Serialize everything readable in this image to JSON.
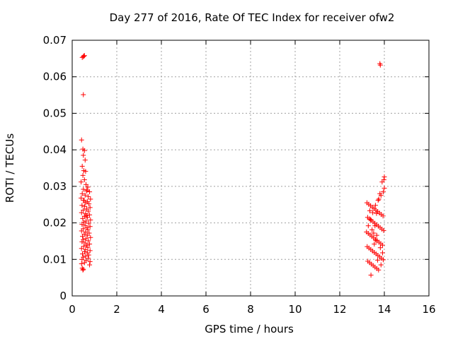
{
  "chart_data": {
    "type": "scatter",
    "title": "Day 277 of 2016, Rate Of TEC Index for receiver ofw2",
    "xlabel": "GPS time / hours",
    "ylabel": "ROTI / TECUs",
    "xlim": [
      0,
      16
    ],
    "ylim": [
      0,
      0.07
    ],
    "xticks": [
      "0",
      "2",
      "4",
      "6",
      "8",
      "10",
      "12",
      "14",
      "16"
    ],
    "yticks": [
      "0",
      "0.01",
      "0.02",
      "0.03",
      "0.04",
      "0.05",
      "0.06",
      "0.07"
    ],
    "grid": true,
    "marker": "+",
    "series_color": "#ff0000",
    "series": [
      {
        "name": "ROTI",
        "points": [
          [
            0.45,
            0.0653
          ],
          [
            0.5,
            0.0655
          ],
          [
            0.52,
            0.0657
          ],
          [
            0.55,
            0.0658
          ],
          [
            0.5,
            0.0551
          ],
          [
            0.42,
            0.0427
          ],
          [
            0.48,
            0.0402
          ],
          [
            0.55,
            0.0398
          ],
          [
            0.5,
            0.0385
          ],
          [
            0.58,
            0.0372
          ],
          [
            0.45,
            0.0355
          ],
          [
            0.52,
            0.0343
          ],
          [
            0.6,
            0.0341
          ],
          [
            0.48,
            0.033
          ],
          [
            0.55,
            0.0318
          ],
          [
            0.4,
            0.0312
          ],
          [
            0.62,
            0.0305
          ],
          [
            0.7,
            0.0298
          ],
          [
            0.5,
            0.0292
          ],
          [
            0.65,
            0.0287
          ],
          [
            0.78,
            0.0285
          ],
          [
            0.45,
            0.028
          ],
          [
            0.58,
            0.0276
          ],
          [
            0.72,
            0.0272
          ],
          [
            0.4,
            0.0268
          ],
          [
            0.82,
            0.0265
          ],
          [
            0.5,
            0.0262
          ],
          [
            0.68,
            0.0258
          ],
          [
            0.6,
            0.0255
          ],
          [
            0.75,
            0.0252
          ],
          [
            0.44,
            0.0248
          ],
          [
            0.56,
            0.0245
          ],
          [
            0.8,
            0.0242
          ],
          [
            0.65,
            0.0238
          ],
          [
            0.5,
            0.0235
          ],
          [
            0.72,
            0.0232
          ],
          [
            0.42,
            0.0228
          ],
          [
            0.6,
            0.0225
          ],
          [
            0.78,
            0.0222
          ],
          [
            0.55,
            0.0218
          ],
          [
            0.68,
            0.0215
          ],
          [
            0.47,
            0.0212
          ],
          [
            0.82,
            0.0208
          ],
          [
            0.62,
            0.0205
          ],
          [
            0.52,
            0.0202
          ],
          [
            0.74,
            0.0199
          ],
          [
            0.44,
            0.0196
          ],
          [
            0.58,
            0.0193
          ],
          [
            0.8,
            0.019
          ],
          [
            0.66,
            0.0187
          ],
          [
            0.5,
            0.0184
          ],
          [
            0.7,
            0.0181
          ],
          [
            0.42,
            0.0178
          ],
          [
            0.6,
            0.0175
          ],
          [
            0.76,
            0.0172
          ],
          [
            0.54,
            0.0169
          ],
          [
            0.68,
            0.0166
          ],
          [
            0.46,
            0.0163
          ],
          [
            0.82,
            0.016
          ],
          [
            0.62,
            0.0157
          ],
          [
            0.5,
            0.0154
          ],
          [
            0.72,
            0.0151
          ],
          [
            0.44,
            0.0148
          ],
          [
            0.58,
            0.0145
          ],
          [
            0.78,
            0.0142
          ],
          [
            0.65,
            0.0139
          ],
          [
            0.52,
            0.0136
          ],
          [
            0.7,
            0.0133
          ],
          [
            0.42,
            0.013
          ],
          [
            0.6,
            0.0127
          ],
          [
            0.8,
            0.0124
          ],
          [
            0.55,
            0.0121
          ],
          [
            0.68,
            0.0118
          ],
          [
            0.46,
            0.0115
          ],
          [
            0.74,
            0.0112
          ],
          [
            0.6,
            0.0109
          ],
          [
            0.5,
            0.0106
          ],
          [
            0.72,
            0.0103
          ],
          [
            0.44,
            0.01
          ],
          [
            0.62,
            0.0097
          ],
          [
            0.8,
            0.0094
          ],
          [
            0.55,
            0.0091
          ],
          [
            0.42,
            0.0088
          ],
          [
            0.78,
            0.0085
          ],
          [
            0.45,
            0.0076
          ],
          [
            0.5,
            0.0073
          ],
          [
            0.48,
            0.0071
          ],
          [
            0.66,
            0.029
          ],
          [
            0.54,
            0.0262
          ],
          [
            0.64,
            0.022
          ],
          [
            13.22,
            0.0255
          ],
          [
            13.3,
            0.0251
          ],
          [
            13.38,
            0.0247
          ],
          [
            13.46,
            0.0243
          ],
          [
            13.54,
            0.0239
          ],
          [
            13.62,
            0.0235
          ],
          [
            13.7,
            0.0231
          ],
          [
            13.78,
            0.0227
          ],
          [
            13.86,
            0.0223
          ],
          [
            13.94,
            0.0219
          ],
          [
            13.25,
            0.0215
          ],
          [
            13.33,
            0.0211
          ],
          [
            13.41,
            0.0207
          ],
          [
            13.49,
            0.0203
          ],
          [
            13.57,
            0.0199
          ],
          [
            13.65,
            0.0195
          ],
          [
            13.73,
            0.0191
          ],
          [
            13.81,
            0.0187
          ],
          [
            13.89,
            0.0183
          ],
          [
            13.97,
            0.0179
          ],
          [
            13.2,
            0.0175
          ],
          [
            13.28,
            0.0171
          ],
          [
            13.36,
            0.0167
          ],
          [
            13.44,
            0.0163
          ],
          [
            13.52,
            0.0159
          ],
          [
            13.6,
            0.0155
          ],
          [
            13.68,
            0.0151
          ],
          [
            13.76,
            0.0147
          ],
          [
            13.84,
            0.0143
          ],
          [
            13.92,
            0.0139
          ],
          [
            13.23,
            0.0135
          ],
          [
            13.31,
            0.0131
          ],
          [
            13.39,
            0.0127
          ],
          [
            13.47,
            0.0123
          ],
          [
            13.55,
            0.0119
          ],
          [
            13.63,
            0.0115
          ],
          [
            13.71,
            0.0111
          ],
          [
            13.79,
            0.0107
          ],
          [
            13.87,
            0.0103
          ],
          [
            13.95,
            0.0099
          ],
          [
            13.26,
            0.0095
          ],
          [
            13.34,
            0.0091
          ],
          [
            13.42,
            0.0087
          ],
          [
            13.5,
            0.0083
          ],
          [
            13.58,
            0.0079
          ],
          [
            13.66,
            0.0075
          ],
          [
            13.74,
            0.0071
          ],
          [
            13.35,
            0.0233
          ],
          [
            13.45,
            0.0181
          ],
          [
            13.55,
            0.0142
          ],
          [
            13.65,
            0.0226
          ],
          [
            13.75,
            0.0265
          ],
          [
            13.85,
            0.0275
          ],
          [
            13.95,
            0.0285
          ],
          [
            14.0,
            0.0295
          ],
          [
            13.9,
            0.0312
          ],
          [
            13.98,
            0.0318
          ],
          [
            14.0,
            0.0326
          ],
          [
            13.8,
            0.028
          ],
          [
            13.72,
            0.0262
          ],
          [
            13.6,
            0.0248
          ],
          [
            13.48,
            0.0228
          ],
          [
            13.38,
            0.0209
          ],
          [
            13.28,
            0.0192
          ],
          [
            13.52,
            0.0172
          ],
          [
            13.62,
            0.0152
          ],
          [
            13.82,
            0.0132
          ],
          [
            13.92,
            0.0118
          ],
          [
            13.7,
            0.0098
          ],
          [
            13.4,
            0.0057
          ],
          [
            13.8,
            0.0636
          ],
          [
            13.82,
            0.0632
          ],
          [
            13.85,
            0.0085
          ],
          [
            13.58,
            0.0192
          ],
          [
            13.66,
            0.0166
          ]
        ]
      }
    ]
  }
}
